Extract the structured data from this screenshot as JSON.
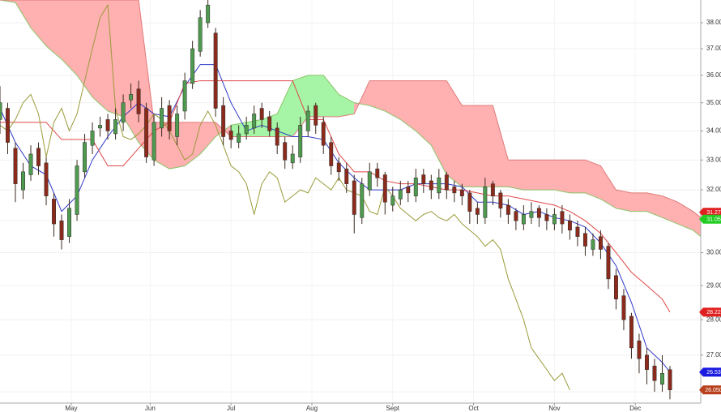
{
  "chart_data": {
    "type": "candlestick",
    "log_y": true,
    "grid": true,
    "ylim": [
      25.7,
      38.9
    ],
    "xlim": [
      0,
      182
    ],
    "yticks": [
      {
        "value": 26,
        "label": "26.00"
      },
      {
        "value": 27,
        "label": "27.00"
      },
      {
        "value": 28,
        "label": "28.00"
      },
      {
        "value": 29,
        "label": "29.00"
      },
      {
        "value": 30,
        "label": "30.00"
      },
      {
        "value": 31,
        "label": "31.00"
      },
      {
        "value": 32,
        "label": "32.00"
      },
      {
        "value": 33,
        "label": "33.00"
      },
      {
        "value": 34,
        "label": "34.00"
      },
      {
        "value": 35,
        "label": "35.00"
      },
      {
        "value": 36,
        "label": "36.00"
      },
      {
        "value": 37,
        "label": "37.00"
      },
      {
        "value": 38,
        "label": "38.00"
      }
    ],
    "xticks": [
      {
        "value": 18.5,
        "label": "May"
      },
      {
        "value": 39,
        "label": "Jun"
      },
      {
        "value": 60,
        "label": "Jul"
      },
      {
        "value": 81,
        "label": "Aug"
      },
      {
        "value": 102,
        "label": "Sept"
      },
      {
        "value": 123,
        "label": "Oct"
      },
      {
        "value": 144,
        "label": "Nov"
      },
      {
        "value": 165,
        "label": "Dec"
      }
    ],
    "up_color": "#4f9a4f",
    "down_color": "#8c2a1c",
    "x": [
      0,
      2,
      4,
      6,
      8,
      10,
      12,
      14,
      16,
      18,
      20,
      22,
      24,
      26,
      28,
      30,
      32,
      34,
      36,
      38,
      40,
      42,
      44,
      46,
      48,
      50,
      52,
      54,
      56,
      58,
      60,
      62,
      64,
      66,
      68,
      70,
      72,
      74,
      76,
      78,
      80,
      82,
      84,
      86,
      88,
      90,
      92,
      94,
      96,
      98,
      100,
      102,
      104,
      106,
      108,
      110,
      112,
      114,
      116,
      118,
      120,
      122,
      124,
      126,
      128,
      130,
      132,
      134,
      136,
      138,
      140,
      142,
      144,
      146,
      148,
      150,
      152,
      154,
      156,
      158,
      160,
      162,
      164,
      166,
      168,
      170,
      172,
      174
    ],
    "open": [
      34.4,
      34.8,
      33.4,
      32.0,
      32.5,
      33.4,
      32.9,
      31.7,
      31.0,
      30.5,
      31.2,
      32.6,
      33.5,
      34.1,
      34.4,
      33.9,
      34.3,
      35.1,
      35.5,
      34.8,
      33.0,
      34.1,
      34.9,
      33.8,
      34.7,
      35.7,
      36.9,
      38.0,
      37.6,
      34.9,
      34.0,
      33.6,
      33.9,
      34.1,
      34.8,
      34.5,
      34.1,
      33.6,
      32.9,
      33.1,
      34.0,
      34.9,
      34.3,
      33.6,
      32.9,
      32.7,
      32.3,
      31.1,
      32.0,
      32.7,
      32.5,
      31.5,
      31.7,
      32.1,
      31.8,
      32.5,
      32.3,
      31.9,
      32.5,
      32.1,
      32.0,
      31.9,
      31.4,
      31.1,
      32.2,
      31.9,
      31.5,
      31.3,
      30.9,
      31.1,
      31.4,
      31.2,
      30.9,
      31.3,
      31.0,
      30.8,
      30.6,
      30.1,
      30.5,
      30.2,
      29.3,
      28.7,
      28.1,
      27.4,
      27.0,
      26.7,
      26.2,
      26.6
    ],
    "high": [
      35.6,
      35.0,
      33.6,
      32.9,
      33.5,
      33.6,
      33.1,
      31.9,
      31.2,
      31.7,
      33.0,
      33.9,
      34.3,
      34.5,
      34.6,
      34.8,
      35.3,
      35.7,
      35.8,
      35.0,
      34.6,
      35.2,
      35.1,
      34.9,
      36.1,
      37.3,
      38.5,
      38.9,
      37.8,
      35.2,
      34.2,
      34.2,
      34.5,
      34.9,
      35.0,
      34.7,
      34.3,
      33.8,
      33.5,
      34.5,
      34.9,
      35.0,
      34.5,
      33.8,
      33.1,
      32.9,
      32.5,
      32.4,
      32.9,
      32.9,
      32.6,
      32.1,
      32.3,
      32.3,
      32.7,
      32.7,
      32.5,
      32.7,
      32.6,
      32.3,
      32.2,
      32.0,
      31.6,
      32.4,
      32.3,
      32.0,
      31.7,
      31.4,
      31.5,
      31.6,
      31.5,
      31.4,
      31.4,
      31.5,
      31.2,
      31.0,
      30.8,
      30.6,
      30.7,
      30.3,
      29.5,
      28.9,
      28.2,
      27.6,
      27.2,
      26.9,
      27.0,
      26.7
    ],
    "low": [
      33.9,
      33.2,
      31.6,
      31.7,
      32.3,
      32.5,
      31.5,
      30.5,
      30.1,
      30.3,
      31.0,
      32.4,
      33.2,
      33.8,
      33.7,
      33.7,
      34.0,
      34.8,
      34.3,
      32.9,
      32.8,
      33.8,
      33.7,
      33.5,
      34.4,
      35.5,
      36.7,
      37.8,
      34.5,
      33.5,
      33.4,
      33.4,
      33.7,
      33.9,
      34.1,
      33.8,
      33.2,
      32.7,
      32.7,
      32.9,
      33.8,
      33.9,
      33.2,
      32.5,
      32.3,
      31.9,
      30.6,
      30.9,
      31.8,
      32.1,
      31.2,
      31.3,
      31.5,
      31.6,
      31.6,
      31.9,
      31.7,
      31.7,
      31.7,
      31.6,
      31.5,
      30.9,
      30.9,
      30.9,
      31.5,
      31.1,
      30.9,
      30.7,
      30.7,
      30.9,
      30.8,
      30.7,
      30.7,
      30.6,
      30.4,
      30.2,
      29.9,
      29.9,
      29.8,
      28.9,
      28.3,
      27.7,
      26.9,
      26.5,
      26.2,
      26.0,
      26.0,
      25.8
    ],
    "close": [
      35.0,
      33.6,
      32.2,
      32.6,
      33.2,
      32.8,
      31.8,
      30.9,
      30.4,
      31.4,
      32.8,
      33.6,
      34.0,
      34.2,
      34.0,
      34.4,
      35.0,
      35.3,
      34.6,
      33.1,
      34.3,
      34.8,
      34.0,
      34.6,
      35.8,
      37.0,
      38.2,
      38.7,
      34.8,
      33.8,
      33.7,
      33.9,
      34.2,
      34.6,
      34.4,
      34.0,
      33.5,
      33.0,
      33.2,
      34.2,
      34.7,
      34.2,
      33.5,
      32.8,
      32.6,
      32.2,
      31.2,
      32.2,
      32.6,
      32.4,
      31.6,
      31.8,
      32.0,
      31.9,
      32.4,
      32.2,
      32.0,
      32.4,
      32.0,
      31.9,
      31.8,
      31.3,
      31.2,
      32.1,
      31.8,
      31.4,
      31.2,
      31.0,
      31.2,
      31.3,
      31.1,
      31.0,
      31.2,
      30.9,
      30.7,
      30.5,
      30.2,
      30.4,
      30.1,
      29.2,
      28.6,
      28.0,
      27.2,
      26.9,
      26.6,
      26.3,
      26.5,
      26.05
    ],
    "cloud": {
      "up_color": "#a6f5a6",
      "down_color": "#ffb0b0",
      "a_color": "#8cc46a",
      "b_color": "#e07a7a",
      "x": [
        0,
        4,
        8,
        12,
        16,
        20,
        24,
        28,
        32,
        36,
        40,
        44,
        48,
        52,
        56,
        60,
        64,
        68,
        72,
        76,
        80,
        84,
        88,
        92,
        96,
        100,
        104,
        108,
        112,
        116,
        120,
        124,
        128,
        132,
        136,
        140,
        144,
        148,
        152,
        156,
        160,
        164,
        168,
        172,
        176,
        180,
        182
      ],
      "span_a": [
        38.9,
        38.8,
        37.8,
        37.1,
        36.6,
        36.0,
        35.2,
        34.7,
        34.5,
        33.6,
        33.0,
        32.7,
        32.8,
        33.2,
        33.8,
        34.2,
        34.3,
        34.4,
        34.6,
        35.8,
        36.0,
        36.0,
        35.3,
        35.0,
        34.9,
        34.7,
        34.4,
        34.0,
        33.5,
        32.5,
        32.1,
        32.1,
        32.1,
        32.1,
        32.0,
        32.0,
        32.0,
        31.9,
        31.9,
        31.7,
        31.4,
        31.3,
        31.3,
        31.1,
        30.9,
        30.7,
        30.5
      ],
      "span_b": [
        38.9,
        38.9,
        38.9,
        38.9,
        38.9,
        38.9,
        38.9,
        38.9,
        38.9,
        38.9,
        34.3,
        34.3,
        34.3,
        34.3,
        34.3,
        33.8,
        33.8,
        33.8,
        33.8,
        33.8,
        34.5,
        34.5,
        34.5,
        34.6,
        35.8,
        35.8,
        35.8,
        35.8,
        35.8,
        35.8,
        34.9,
        34.9,
        34.9,
        33.0,
        33.0,
        33.0,
        33.0,
        33.0,
        33.0,
        32.8,
        32.0,
        31.9,
        31.9,
        31.8,
        31.6,
        31.3,
        31.1
      ]
    },
    "lines": [
      {
        "color": "#3038c8",
        "x": [
          0,
          4,
          8,
          12,
          16,
          20,
          24,
          28,
          32,
          36,
          40,
          44,
          48,
          52,
          56,
          60,
          64,
          68,
          72,
          76,
          80,
          84,
          88,
          92,
          96,
          100,
          104,
          108,
          112,
          116,
          120,
          124,
          128,
          132,
          136,
          140,
          144,
          148,
          152,
          156,
          160,
          164,
          168,
          172,
          174
        ],
        "values": [
          34.8,
          33.6,
          32.8,
          32.5,
          31.3,
          31.8,
          33.0,
          33.8,
          34.5,
          35.0,
          34.6,
          34.5,
          35.6,
          36.4,
          36.4,
          35.0,
          34.0,
          34.2,
          34.0,
          33.8,
          33.8,
          33.7,
          32.9,
          32.4,
          32.0,
          32.0,
          32.0,
          32.2,
          32.2,
          32.2,
          32.1,
          31.6,
          31.6,
          31.5,
          31.2,
          31.3,
          31.1,
          31.0,
          30.8,
          30.3,
          29.6,
          28.5,
          27.2,
          26.8,
          26.53
        ]
      },
      {
        "color": "#e04848",
        "x": [
          0,
          4,
          8,
          12,
          16,
          20,
          24,
          28,
          32,
          36,
          40,
          44,
          48,
          52,
          56,
          60,
          64,
          68,
          72,
          76,
          80,
          84,
          88,
          92,
          96,
          100,
          104,
          108,
          112,
          116,
          120,
          124,
          128,
          132,
          136,
          140,
          144,
          148,
          152,
          156,
          160,
          164,
          168,
          172,
          174
        ],
        "values": [
          34.3,
          34.3,
          34.3,
          34.3,
          33.7,
          33.7,
          33.7,
          32.8,
          32.8,
          33.4,
          34.0,
          34.3,
          35.7,
          35.8,
          35.8,
          35.8,
          35.8,
          35.8,
          35.8,
          35.8,
          34.4,
          34.4,
          33.2,
          32.6,
          32.6,
          32.3,
          32.2,
          32.2,
          32.1,
          32.0,
          32.0,
          31.9,
          31.8,
          31.8,
          31.7,
          31.6,
          31.5,
          31.3,
          31.0,
          30.6,
          30.0,
          29.4,
          29.0,
          28.6,
          28.22
        ]
      },
      {
        "color": "#9a9a3a",
        "x": [
          0,
          2,
          4,
          6,
          8,
          10,
          12,
          14,
          16,
          18,
          20,
          22,
          24,
          26,
          28,
          30,
          32,
          34,
          36,
          38,
          40,
          42,
          44,
          46,
          48,
          50,
          52,
          54,
          56,
          58,
          60,
          62,
          64,
          66,
          68,
          70,
          72,
          74,
          76,
          78,
          80,
          82,
          84,
          86,
          88,
          90,
          92,
          94,
          96,
          98,
          100,
          102,
          104,
          106,
          108,
          110,
          112,
          114,
          116,
          118,
          120,
          122,
          124,
          126,
          128,
          130,
          132,
          134,
          136,
          138,
          140,
          142,
          144,
          146,
          148
        ],
        "values": [
          34.2,
          34.0,
          34.4,
          35.0,
          35.3,
          34.6,
          33.1,
          34.3,
          34.8,
          34.0,
          34.6,
          35.8,
          37.0,
          38.2,
          38.7,
          34.8,
          33.8,
          33.7,
          33.9,
          34.2,
          34.6,
          34.4,
          34.0,
          33.5,
          33.0,
          33.2,
          34.2,
          34.7,
          34.2,
          33.5,
          32.8,
          32.6,
          32.2,
          31.2,
          32.2,
          32.6,
          32.4,
          31.6,
          31.8,
          32.0,
          31.9,
          32.4,
          32.2,
          32.0,
          32.4,
          32.0,
          31.9,
          31.8,
          31.3,
          31.2,
          32.1,
          31.8,
          31.4,
          31.2,
          31.0,
          31.2,
          31.3,
          31.1,
          31.0,
          31.2,
          30.9,
          30.7,
          30.5,
          30.2,
          30.4,
          30.1,
          29.2,
          28.6,
          28.0,
          27.2,
          26.9,
          26.6,
          26.3,
          26.5,
          26.05
        ]
      }
    ],
    "price_tags": [
      {
        "value": 31.27,
        "label": "31.27",
        "color": "#e02020"
      },
      {
        "value": 31.05,
        "label": "31.05",
        "color": "#22cc22"
      },
      {
        "value": 28.22,
        "label": "28.22",
        "color": "#e02020"
      },
      {
        "value": 26.53,
        "label": "26.53",
        "color": "#1a1ae0"
      },
      {
        "value": 26.05,
        "label": "26.050",
        "color": "#b8401c"
      }
    ]
  }
}
